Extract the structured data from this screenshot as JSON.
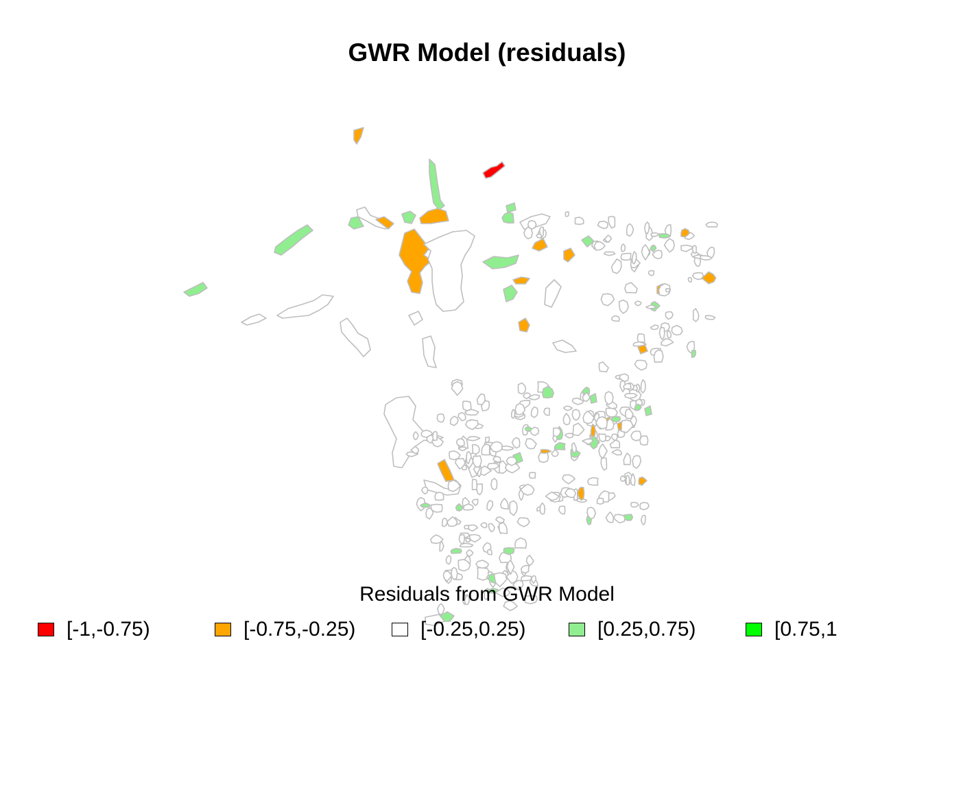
{
  "title": "GWR Model (residuals)",
  "legend": {
    "title": "Residuals from GWR Model",
    "classes": [
      {
        "label": "[-1,-0.75)",
        "color": "#ff0000"
      },
      {
        "label": "[-0.75,-0.25)",
        "color": "#ffa500"
      },
      {
        "label": "[-0.25,0.25)",
        "color": "#ffffff"
      },
      {
        "label": "[0.25,0.75)",
        "color": "#90ee90"
      },
      {
        "label": "[0.75,1",
        "color": "#00ff00"
      }
    ]
  },
  "map": {
    "border_color": "#bebebe"
  }
}
